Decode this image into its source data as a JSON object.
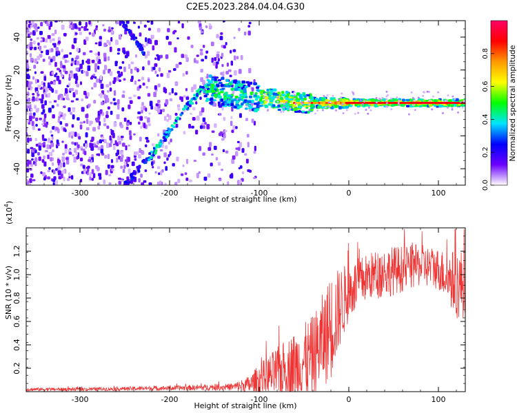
{
  "figure_title": "C2E5.2023.284.04.04.G30",
  "colorbar": {
    "label": "Normalized spectral amplitude",
    "ticks": [
      "0.0",
      "0.2",
      "0.4",
      "0.6",
      "0.8"
    ],
    "colors": [
      "#ffffff",
      "#6a00ff",
      "#0000ff",
      "#00e5ff",
      "#00ff00",
      "#ffff00",
      "#ff9900",
      "#ff0000",
      "#ff0066"
    ]
  },
  "chart_data": [
    {
      "type": "heatmap",
      "title": "",
      "xlabel": "Height of straight line (km)",
      "ylabel": "Frequency (Hz)",
      "xlim": [
        -360,
        130
      ],
      "ylim": [
        -50,
        50
      ],
      "x_ticks": [
        "-300",
        "-200",
        "-100",
        "0",
        "100"
      ],
      "y_ticks": [
        "-40",
        "-20",
        "0",
        "20",
        "40"
      ],
      "features": {
        "noise_region_x": [
          -360,
          -120
        ],
        "diagonal_track": [
          [
            -250,
            -50
          ],
          [
            -215,
            -28
          ],
          [
            -180,
            -2
          ],
          [
            -165,
            8
          ],
          [
            -150,
            10
          ]
        ],
        "steep_track": [
          [
            -255,
            50
          ],
          [
            -240,
            40
          ],
          [
            -228,
            30
          ]
        ],
        "converging_band": [
          [
            -160,
            8
          ],
          [
            -100,
            3
          ],
          [
            -50,
            0
          ],
          [
            0,
            0
          ],
          [
            130,
            0
          ]
        ]
      }
    },
    {
      "type": "line",
      "title": "",
      "xlabel": "Height of straight line (km)",
      "ylabel": "SNR (10 * v/v)",
      "y_multiplier": "(x10",
      "y_multiplier_exp": "4",
      "xlim": [
        -360,
        130
      ],
      "ylim": [
        0,
        1.4
      ],
      "x_ticks": [
        "-300",
        "-200",
        "-100",
        "0",
        "100"
      ],
      "y_ticks": [
        "0.2",
        "0.4",
        "0.6",
        "0.8",
        "1.0",
        "1.2"
      ],
      "series": [
        {
          "color": "#ee3333",
          "envelope": {
            "x": [
              -360,
              -300,
              -200,
              -130,
              -110,
              -100,
              -80,
              -60,
              -40,
              -20,
              -10,
              0,
              20,
              40,
              60,
              80,
              100,
              110,
              120,
              130
            ],
            "base": [
              0.02,
              0.02,
              0.03,
              0.04,
              0.06,
              0.1,
              0.16,
              0.22,
              0.3,
              0.55,
              0.72,
              0.85,
              0.98,
              1.02,
              1.05,
              1.08,
              1.05,
              0.98,
              0.92,
              0.92
            ],
            "spread": [
              0.015,
              0.015,
              0.02,
              0.03,
              0.08,
              0.14,
              0.22,
              0.3,
              0.35,
              0.45,
              0.35,
              0.25,
              0.2,
              0.22,
              0.2,
              0.18,
              0.18,
              0.22,
              0.3,
              0.3
            ]
          }
        }
      ]
    }
  ]
}
